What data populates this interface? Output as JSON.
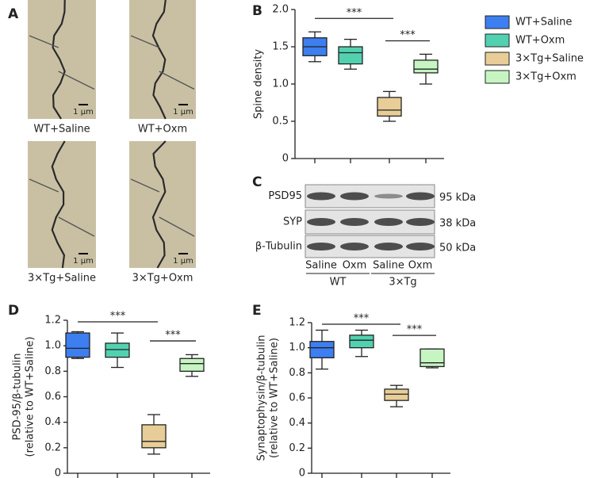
{
  "chart_data": [
    {
      "type": "box",
      "ylabel": [
        "Spine density"
      ],
      "annotations": [
        "***",
        "***"
      ],
      "ylim": [
        0,
        2
      ],
      "yticks": [
        0,
        0.5,
        {
          "value": 1,
          "label": "1.0"
        },
        1.5,
        {
          "value": 2,
          "label": "2.0"
        }
      ],
      "series": [
        {
          "name": "WT+Saline",
          "color": "#3d7ff0",
          "values": {
            "min": 1.3,
            "q1": 1.38,
            "median": 1.5,
            "q3": 1.62,
            "max": 1.7
          }
        },
        {
          "name": "WT+Oxm",
          "color": "#52d1b0",
          "values": {
            "min": 1.2,
            "q1": 1.27,
            "median": 1.42,
            "q3": 1.5,
            "max": 1.6
          }
        },
        {
          "name": "3×Tg+Saline",
          "color": "#e8cd98",
          "values": {
            "min": 0.5,
            "q1": 0.57,
            "median": 0.65,
            "q3": 0.82,
            "max": 0.9
          }
        },
        {
          "name": "3×Tg+Oxm",
          "color": "#c6f5c2",
          "values": {
            "min": 1.0,
            "q1": 1.15,
            "median": 1.2,
            "q3": 1.32,
            "max": 1.4
          }
        }
      ]
    },
    {
      "type": "box",
      "ylabel": [
        "PSD-95/β-tubulin",
        "(relative to WT+Saline)"
      ],
      "annotations": [
        "***",
        "***"
      ],
      "ylim": [
        0,
        1.2
      ],
      "yticks": [
        0,
        0.2,
        0.4,
        0.6,
        0.8,
        {
          "value": 1,
          "label": "1.0"
        },
        1.2
      ],
      "series": [
        {
          "color": "#3d7ff0",
          "values": {
            "min": 0.9,
            "q1": 0.91,
            "median": 0.98,
            "q3": 1.1,
            "max": 1.11
          }
        },
        {
          "color": "#52d1b0",
          "values": {
            "min": 0.83,
            "q1": 0.91,
            "median": 0.97,
            "q3": 1.02,
            "max": 1.1
          }
        },
        {
          "color": "#e8cd98",
          "values": {
            "min": 0.15,
            "q1": 0.2,
            "median": 0.25,
            "q3": 0.38,
            "max": 0.46
          }
        },
        {
          "color": "#c6f5c2",
          "values": {
            "min": 0.76,
            "q1": 0.8,
            "median": 0.86,
            "q3": 0.9,
            "max": 0.93
          }
        }
      ]
    },
    {
      "type": "box",
      "ylabel": [
        "Synaptophysin/β-tubulin",
        "(relative to WT+Saline)"
      ],
      "annotations": [
        "***",
        "***"
      ],
      "ylim": [
        0,
        1.2
      ],
      "yticks": [
        0,
        0.2,
        0.4,
        0.6,
        0.8,
        {
          "value": 1,
          "label": "1.0"
        },
        1.2
      ],
      "series": [
        {
          "color": "#3d7ff0",
          "values": {
            "min": 0.83,
            "q1": 0.92,
            "median": 1.0,
            "q3": 1.05,
            "max": 1.14
          }
        },
        {
          "color": "#52d1b0",
          "values": {
            "min": 0.93,
            "q1": 1.0,
            "median": 1.06,
            "q3": 1.1,
            "max": 1.14
          }
        },
        {
          "color": "#e8cd98",
          "values": {
            "min": 0.53,
            "q1": 0.58,
            "median": 0.63,
            "q3": 0.67,
            "max": 0.7
          }
        },
        {
          "color": "#c6f5c2",
          "values": {
            "min": 0.84,
            "q1": 0.85,
            "median": 0.88,
            "q3": 0.99,
            "max": 0.99
          }
        }
      ]
    }
  ],
  "figure": {
    "panel_labels": [
      "A",
      "B",
      "C",
      "D",
      "E"
    ],
    "images": [
      {
        "label": "WT+Saline",
        "scale": "1 μm"
      },
      {
        "label": "WT+Oxm",
        "scale": "1 μm"
      },
      {
        "label": "3×Tg+Saline",
        "scale": "1 μm"
      },
      {
        "label": "3×Tg+Oxm",
        "scale": "1 μm"
      }
    ],
    "blot": {
      "proteins": [
        "PSD95",
        "SYP",
        "β-Tubulin"
      ],
      "sizes": [
        "95 kDa",
        "38 kDa",
        "50 kDa"
      ],
      "lanes": [
        "Saline",
        "Oxm",
        "Saline",
        "Oxm"
      ],
      "groups": [
        "WT",
        "3×Tg"
      ]
    }
  }
}
